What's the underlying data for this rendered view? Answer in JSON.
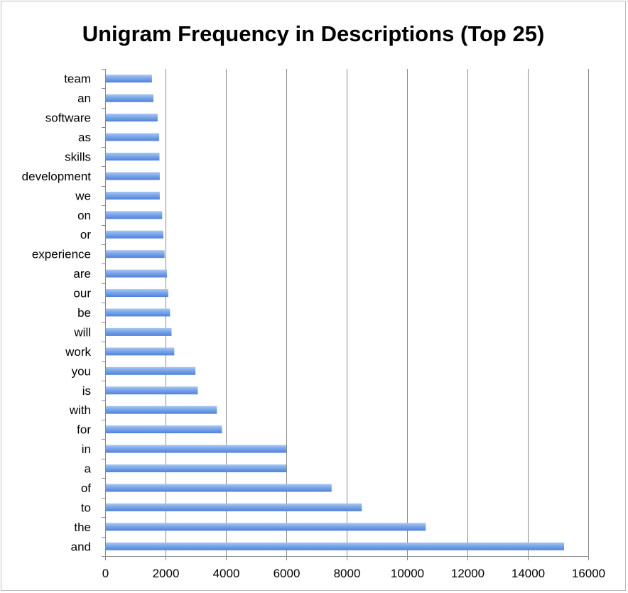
{
  "chart_data": {
    "type": "bar",
    "orientation": "horizontal",
    "title": "Unigram Frequency in Descriptions (Top 25)",
    "xlabel": "",
    "ylabel": "",
    "xlim": [
      0,
      16000
    ],
    "xticks": [
      0,
      2000,
      4000,
      6000,
      8000,
      10000,
      12000,
      14000,
      16000
    ],
    "grid": "vertical",
    "legend": "none",
    "bar_color": "#6f9be6",
    "categories": [
      "team",
      "an",
      "software",
      "as",
      "skills",
      "development",
      "we",
      "on",
      "or",
      "experience",
      "are",
      "our",
      "be",
      "will",
      "work",
      "you",
      "is",
      "with",
      "for",
      "in",
      "a",
      "of",
      "to",
      "the",
      "and"
    ],
    "values": [
      1550,
      1600,
      1740,
      1790,
      1800,
      1810,
      1810,
      1890,
      1930,
      1970,
      2050,
      2090,
      2150,
      2200,
      2290,
      2990,
      3070,
      3700,
      3870,
      6000,
      6000,
      7500,
      8500,
      10620,
      15200
    ]
  }
}
